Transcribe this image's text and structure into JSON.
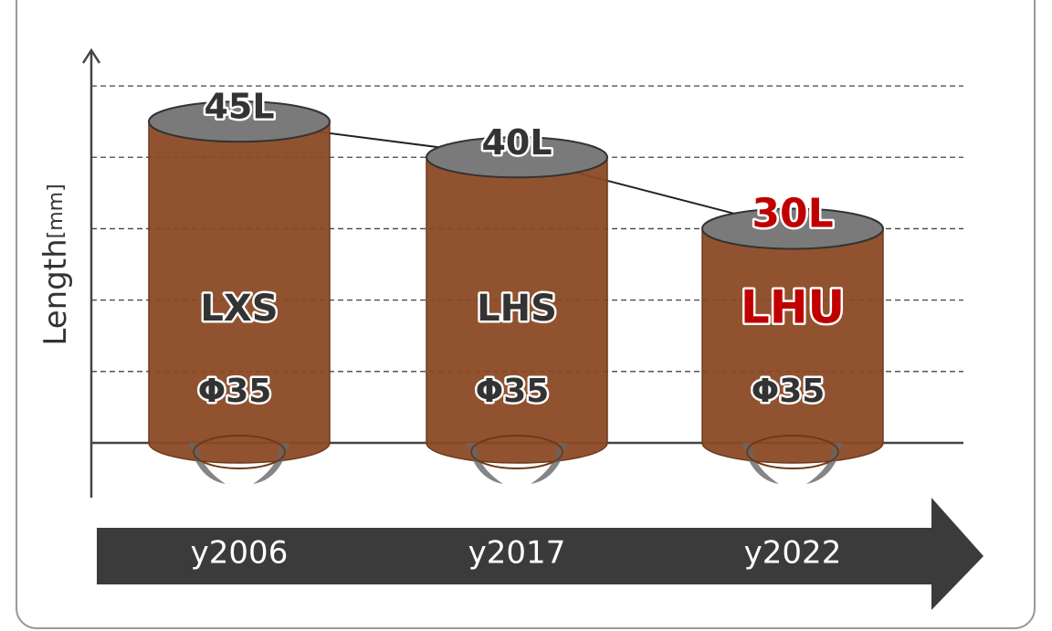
{
  "chart_data": {
    "type": "cylinder",
    "ylabel": "Length",
    "yunit": "[mm]",
    "categories": [
      "y2006",
      "y2017",
      "y2022"
    ],
    "names": [
      "LXS",
      "LHS",
      "LHU"
    ],
    "diameters": [
      "Φ35",
      "Φ35",
      "Φ35"
    ],
    "values": [
      45,
      40,
      30
    ],
    "value_labels": [
      "45L",
      "40L",
      "30L"
    ],
    "label_colors": [
      "#333333",
      "#333333",
      "#c00000"
    ],
    "color": "#8b4a24",
    "top_color": "#7a7a7a",
    "ylim": [
      0,
      55
    ],
    "yticks": [
      10,
      20,
      30,
      40,
      50
    ],
    "grid": true
  }
}
